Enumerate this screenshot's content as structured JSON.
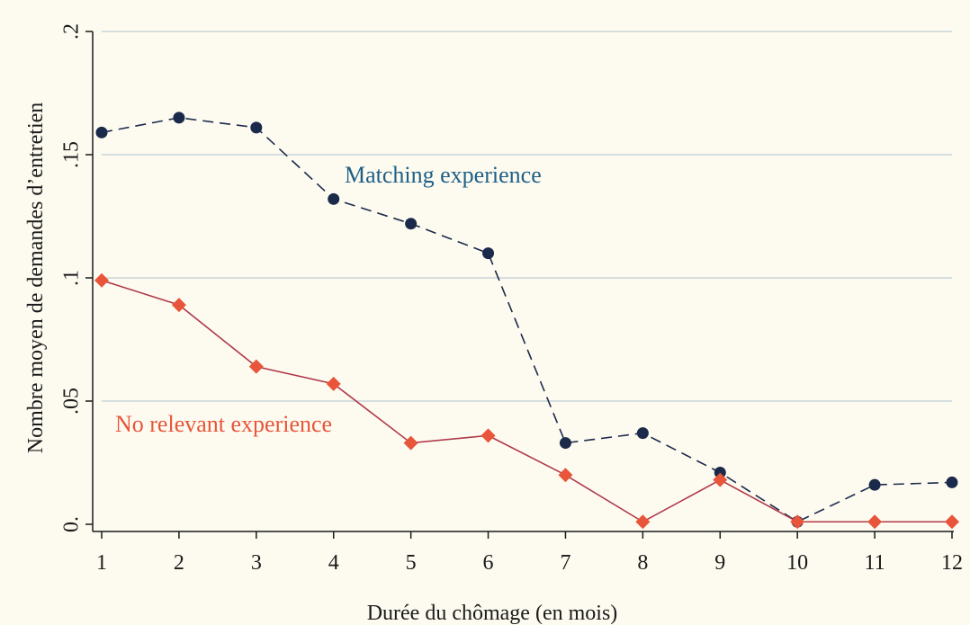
{
  "chart_data": {
    "type": "line",
    "title": "",
    "xlabel": "Durée du chômage (en mois)",
    "ylabel": "Nombre moyen de demandes d’entretien",
    "x": [
      1,
      2,
      3,
      4,
      5,
      6,
      7,
      8,
      9,
      10,
      11,
      12
    ],
    "xticks": [
      "1",
      "2",
      "3",
      "4",
      "5",
      "6",
      "7",
      "8",
      "9",
      "10",
      "11",
      "12"
    ],
    "yticks": [
      {
        "value": 0,
        "label": "0."
      },
      {
        "value": 0.05,
        "label": ".05"
      },
      {
        "value": 0.1,
        "label": ".1"
      },
      {
        "value": 0.15,
        "label": ".15"
      },
      {
        "value": 0.2,
        "label": ".2"
      }
    ],
    "xlim": [
      1,
      12
    ],
    "ylim": [
      0,
      0.2
    ],
    "grid": "horizontal",
    "legend": "none",
    "series": [
      {
        "name": "Matching experience",
        "values": [
          0.159,
          0.165,
          0.161,
          0.132,
          0.122,
          0.11,
          0.033,
          0.037,
          0.021,
          0.001,
          0.016,
          0.017
        ],
        "color": "#1b2a4a",
        "line_style": "dashed",
        "marker": "circle"
      },
      {
        "name": "No relevant experience",
        "values": [
          0.099,
          0.089,
          0.064,
          0.057,
          0.033,
          0.036,
          0.02,
          0.001,
          0.018,
          0.001,
          0.001,
          0.001
        ],
        "color": "#e8553a",
        "line_color": "#b03a4a",
        "line_style": "solid",
        "marker": "diamond"
      }
    ],
    "annotations": [
      {
        "text": "Matching experience",
        "color": "#1f5f86"
      },
      {
        "text": "No relevant experience",
        "color": "#e8553a"
      }
    ],
    "colors": {
      "background": "#fdfbf0",
      "grid": "#c9d4d8",
      "axis": "#1a1a1a"
    }
  }
}
